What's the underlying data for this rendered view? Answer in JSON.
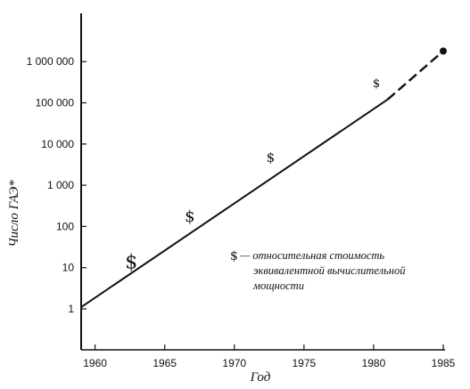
{
  "chart_data": {
    "type": "line",
    "title": "",
    "xlabel": "Год",
    "ylabel": "Число ГАЭ*",
    "xlim": [
      1959,
      1985
    ],
    "ylim": [
      1,
      1000000
    ],
    "y_scale": "log",
    "grid": false,
    "x_ticks": [
      1960,
      1965,
      1970,
      1975,
      1980,
      1985
    ],
    "x_tick_labels": [
      "1960",
      "1965",
      "1970",
      "1975",
      "1980",
      "1985"
    ],
    "y_ticks": [
      1,
      10,
      100,
      1000,
      10000,
      100000,
      1000000
    ],
    "y_tick_labels": [
      "1",
      "10",
      "100",
      "1 000",
      "10 000",
      "100 000",
      "1 000 000"
    ],
    "series": [
      {
        "style": "solid",
        "x": [
          1959,
          1981
        ],
        "y": [
          1.1,
          120000
        ]
      },
      {
        "style": "dashed",
        "x": [
          1981,
          1985
        ],
        "y": [
          120000,
          1800000
        ]
      }
    ],
    "endpoint": {
      "x": 1985,
      "y": 1800000
    },
    "cost_markers": [
      {
        "label": "$",
        "x": 1962.6,
        "y": 14,
        "size": 22
      },
      {
        "label": "$",
        "x": 1966.8,
        "y": 180,
        "size": 18
      },
      {
        "label": "$",
        "x": 1972.6,
        "y": 4800,
        "size": 15
      },
      {
        "label": "$",
        "x": 1980.2,
        "y": 300000,
        "size": 13
      }
    ],
    "annotation": {
      "symbol": "$",
      "lines": [
        "— относительная стоимость",
        "эквивалентной вычислительной",
        "мощности"
      ]
    }
  }
}
